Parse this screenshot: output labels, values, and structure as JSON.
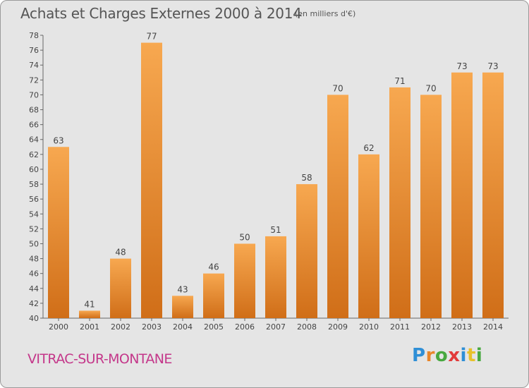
{
  "header": {
    "title": "Achats et Charges Externes 2000 à 2014",
    "unit": "(en milliers d'€)"
  },
  "footer": {
    "commune": "VITRAC-SUR-MONTANE",
    "brand": {
      "letters": [
        "P",
        "r",
        "o",
        "x",
        "i",
        "t",
        "i"
      ],
      "colors": [
        "#2f8fd6",
        "#e8862a",
        "#48a840",
        "#e23a3a",
        "#2f8fd6",
        "#e8c12a",
        "#48a840"
      ]
    }
  },
  "colors": {
    "bar_light": "#f7a850",
    "bar_dark": "#d06e18",
    "axis": "#666666",
    "grid": "#cfcfcf",
    "text": "#444444",
    "commune": "#c4378a"
  },
  "chart_data": {
    "type": "bar",
    "categories": [
      "2000",
      "2001",
      "2002",
      "2003",
      "2004",
      "2005",
      "2006",
      "2007",
      "2008",
      "2009",
      "2010",
      "2011",
      "2012",
      "2013",
      "2014"
    ],
    "values": [
      63,
      41,
      48,
      77,
      43,
      46,
      50,
      51,
      58,
      70,
      62,
      71,
      70,
      73,
      73
    ],
    "data_labels": [
      "63",
      "41",
      "48",
      "77",
      "43",
      "46",
      "50",
      "51",
      "58",
      "70",
      "62",
      "71",
      "70",
      "73",
      "73"
    ],
    "title": "Achats et Charges Externes 2000 à 2014",
    "subtitle": "(en milliers d'€)",
    "xlabel": "",
    "ylabel": "",
    "ylim": [
      40,
      78
    ],
    "yticks": [
      40,
      42,
      44,
      46,
      48,
      50,
      52,
      54,
      56,
      58,
      60,
      62,
      64,
      66,
      68,
      70,
      72,
      74,
      76,
      78
    ],
    "grid": false
  }
}
